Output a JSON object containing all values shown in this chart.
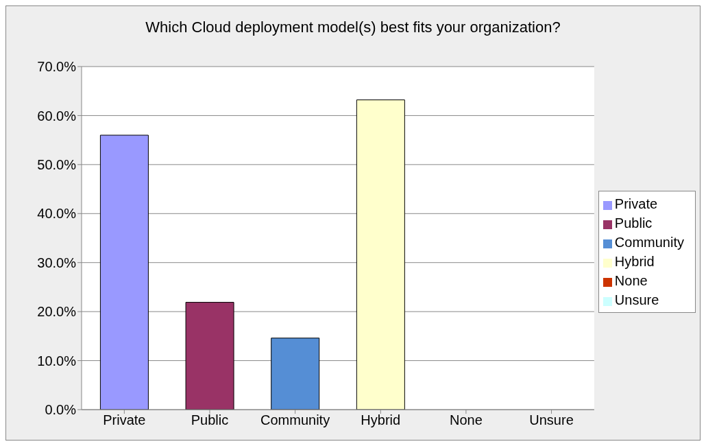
{
  "chart_data": {
    "type": "bar",
    "title": "Which Cloud deployment model(s) best fits your organization?",
    "categories": [
      "Private",
      "Public",
      "Community",
      "Hybrid",
      "None",
      "Unsure"
    ],
    "series": [
      {
        "name": "Private",
        "color": "#9999ff",
        "values": [
          56.0,
          null,
          null,
          null,
          null,
          null
        ]
      },
      {
        "name": "Public",
        "color": "#993366",
        "values": [
          null,
          21.9,
          null,
          null,
          null,
          null
        ]
      },
      {
        "name": "Community",
        "color": "#558ed5",
        "values": [
          null,
          null,
          14.6,
          null,
          null,
          null
        ]
      },
      {
        "name": "Hybrid",
        "color": "#ffffcc",
        "values": [
          null,
          null,
          null,
          63.2,
          null,
          null
        ]
      },
      {
        "name": "None",
        "color": "#cc3300",
        "values": [
          null,
          null,
          null,
          null,
          0,
          null
        ]
      },
      {
        "name": "Unsure",
        "color": "#ccffff",
        "values": [
          null,
          null,
          null,
          null,
          null,
          0
        ]
      }
    ],
    "stacked": true,
    "ylim": [
      0,
      70
    ],
    "yticks": [
      {
        "value": 0,
        "label": "0.0%"
      },
      {
        "value": 10,
        "label": "10.0%"
      },
      {
        "value": 20,
        "label": "20.0%"
      },
      {
        "value": 30,
        "label": "30.0%"
      },
      {
        "value": 40,
        "label": "40.0%"
      },
      {
        "value": 50,
        "label": "50.0%"
      },
      {
        "value": 60,
        "label": "60.0%"
      },
      {
        "value": 70,
        "label": "70.0%"
      }
    ],
    "grid": "y",
    "legend": "right"
  }
}
